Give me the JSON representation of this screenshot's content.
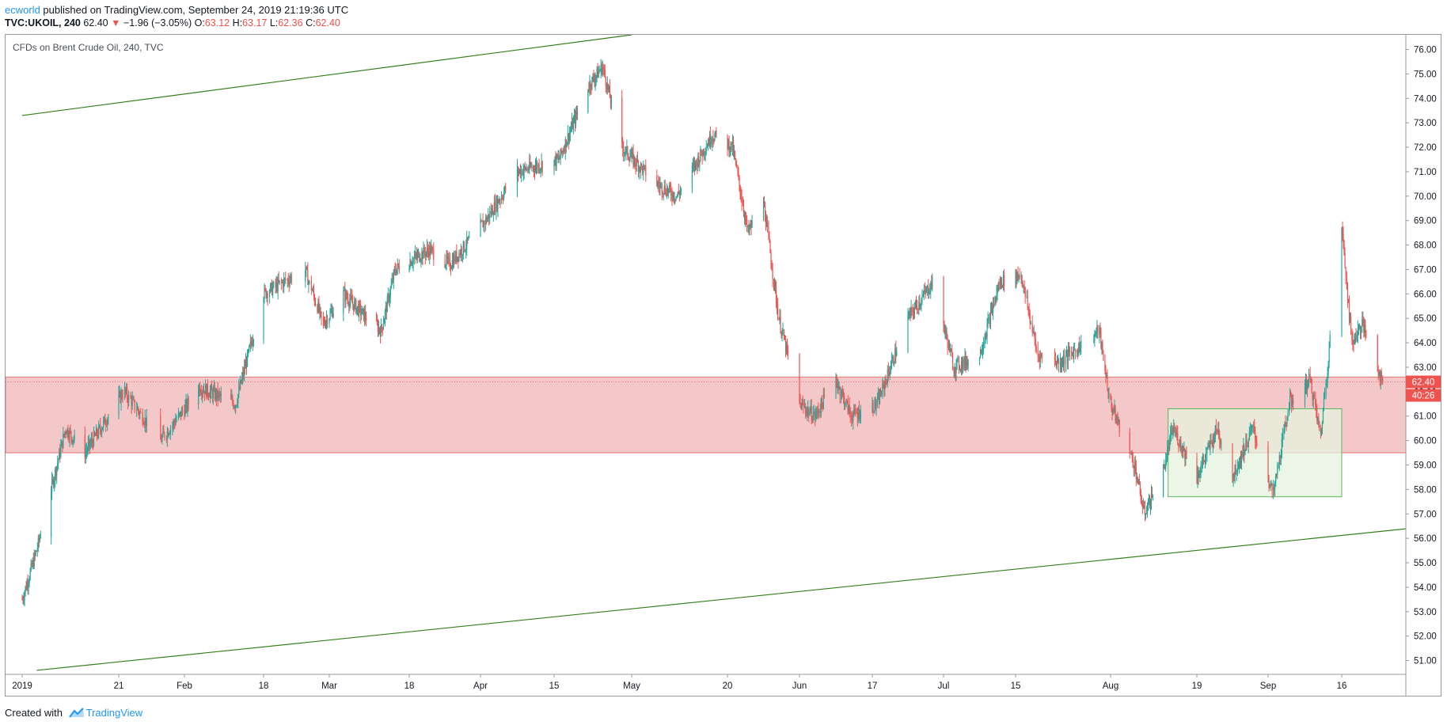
{
  "header": {
    "author": "ecworld",
    "published_text": "published on TradingView.com, September 24, 2019 21:19:36 UTC",
    "symbol": "TVC:UKOIL, 240",
    "last": "62.40",
    "arrow": "▼",
    "change": "−1.96 (−3.05%)",
    "o_label": "O:",
    "o_value": "63.12",
    "h_label": "H:",
    "h_value": "63.17",
    "l_label": "L:",
    "l_value": "62.36",
    "c_label": "C:",
    "c_value": "62.40"
  },
  "footer": {
    "created_with": "Created with",
    "brand": "TradingView"
  },
  "colors": {
    "up": "#26a69a",
    "down": "#ef5350",
    "zone_fill": "#f4c7c9",
    "zone_border": "#e57373",
    "trend_line": "#33801a",
    "box_fill": "#e6f3dd",
    "box_border": "#5cb85c",
    "price_badge": "#ef5350"
  },
  "chart_data": {
    "type": "candlestick",
    "title": "CFDs on Brent Crude Oil, 240, TVC",
    "ylim": [
      50.5,
      76.6
    ],
    "y_ticks": [
      51,
      52,
      53,
      54,
      55,
      56,
      57,
      58,
      59,
      60,
      61,
      62,
      63,
      64,
      65,
      66,
      67,
      68,
      69,
      70,
      71,
      72,
      73,
      74,
      75,
      76
    ],
    "x_ticks": [
      {
        "label": "2019",
        "date": "2019-01-01"
      },
      {
        "label": "21",
        "date": "2019-01-21"
      },
      {
        "label": "Feb",
        "date": "2019-02-01"
      },
      {
        "label": "18",
        "date": "2019-02-18"
      },
      {
        "label": "Mar",
        "date": "2019-03-01"
      },
      {
        "label": "18",
        "date": "2019-03-18"
      },
      {
        "label": "Apr",
        "date": "2019-04-01"
      },
      {
        "label": "15",
        "date": "2019-04-15"
      },
      {
        "label": "May",
        "date": "2019-05-01"
      },
      {
        "label": "20",
        "date": "2019-05-20"
      },
      {
        "label": "Jun",
        "date": "2019-06-03"
      },
      {
        "label": "17",
        "date": "2019-06-17"
      },
      {
        "label": "Jul",
        "date": "2019-07-01"
      },
      {
        "label": "15",
        "date": "2019-07-15"
      },
      {
        "label": "Aug",
        "date": "2019-08-01"
      },
      {
        "label": "19",
        "date": "2019-08-19"
      },
      {
        "label": "Sep",
        "date": "2019-09-02"
      },
      {
        "label": "16",
        "date": "2019-09-16"
      }
    ],
    "price_path": [
      {
        "date": "2019-01-01",
        "price": 53.5
      },
      {
        "date": "2019-01-04",
        "price": 55.5
      },
      {
        "date": "2019-01-10",
        "price": 60.5
      },
      {
        "date": "2019-01-14",
        "price": 59.5
      },
      {
        "date": "2019-01-22",
        "price": 62.0
      },
      {
        "date": "2019-01-28",
        "price": 60.0
      },
      {
        "date": "2019-02-04",
        "price": 62.2
      },
      {
        "date": "2019-02-12",
        "price": 61.5
      },
      {
        "date": "2019-02-18",
        "price": 66.0
      },
      {
        "date": "2019-02-25",
        "price": 67.0
      },
      {
        "date": "2019-02-28",
        "price": 64.8
      },
      {
        "date": "2019-03-04",
        "price": 66.0
      },
      {
        "date": "2019-03-08",
        "price": 65.2
      },
      {
        "date": "2019-03-12",
        "price": 64.5
      },
      {
        "date": "2019-03-15",
        "price": 67.0
      },
      {
        "date": "2019-03-22",
        "price": 67.8
      },
      {
        "date": "2019-03-26",
        "price": 67.2
      },
      {
        "date": "2019-04-02",
        "price": 69.0
      },
      {
        "date": "2019-04-08",
        "price": 71.0
      },
      {
        "date": "2019-04-16",
        "price": 71.5
      },
      {
        "date": "2019-04-22",
        "price": 74.5
      },
      {
        "date": "2019-04-25",
        "price": 75.3
      },
      {
        "date": "2019-04-29",
        "price": 72.0
      },
      {
        "date": "2019-05-06",
        "price": 70.5
      },
      {
        "date": "2019-05-10",
        "price": 70.0
      },
      {
        "date": "2019-05-17",
        "price": 72.5
      },
      {
        "date": "2019-05-21",
        "price": 72.0
      },
      {
        "date": "2019-05-24",
        "price": 68.5
      },
      {
        "date": "2019-05-27",
        "price": 69.8
      },
      {
        "date": "2019-05-30",
        "price": 65.0
      },
      {
        "date": "2019-06-03",
        "price": 61.5
      },
      {
        "date": "2019-06-06",
        "price": 61.0
      },
      {
        "date": "2019-06-10",
        "price": 62.5
      },
      {
        "date": "2019-06-13",
        "price": 61.0
      },
      {
        "date": "2019-06-18",
        "price": 61.5
      },
      {
        "date": "2019-06-24",
        "price": 65.0
      },
      {
        "date": "2019-06-29",
        "price": 66.5
      },
      {
        "date": "2019-07-03",
        "price": 63.0
      },
      {
        "date": "2019-07-08",
        "price": 63.5
      },
      {
        "date": "2019-07-12",
        "price": 66.5
      },
      {
        "date": "2019-07-16",
        "price": 66.8
      },
      {
        "date": "2019-07-19",
        "price": 63.5
      },
      {
        "date": "2019-07-23",
        "price": 63.2
      },
      {
        "date": "2019-07-30",
        "price": 64.5
      },
      {
        "date": "2019-08-01",
        "price": 61.5
      },
      {
        "date": "2019-08-06",
        "price": 59.0
      },
      {
        "date": "2019-08-08",
        "price": 57.0
      },
      {
        "date": "2019-08-12",
        "price": 58.8
      },
      {
        "date": "2019-08-14",
        "price": 60.5
      },
      {
        "date": "2019-08-19",
        "price": 58.5
      },
      {
        "date": "2019-08-23",
        "price": 60.5
      },
      {
        "date": "2019-08-26",
        "price": 58.5
      },
      {
        "date": "2019-08-30",
        "price": 60.5
      },
      {
        "date": "2019-09-03",
        "price": 57.8
      },
      {
        "date": "2019-09-06",
        "price": 61.5
      },
      {
        "date": "2019-09-10",
        "price": 62.5
      },
      {
        "date": "2019-09-12",
        "price": 60.2
      },
      {
        "date": "2019-09-16",
        "price": 68.8
      },
      {
        "date": "2019-09-18",
        "price": 64.0
      },
      {
        "date": "2019-09-20",
        "price": 64.8
      },
      {
        "date": "2019-09-24",
        "price": 62.4
      }
    ],
    "annotations": {
      "resistance_zone": {
        "y_low": 59.5,
        "y_high": 62.6
      },
      "consolidation_box": {
        "x_start": "2019-08-13",
        "x_end": "2019-09-16",
        "y_low": 57.7,
        "y_high": 61.3
      },
      "upper_trend_line": {
        "points": [
          {
            "date": "2019-01-01",
            "price": 73.3
          },
          {
            "date": "2019-05-01",
            "price": 76.6
          }
        ]
      },
      "lower_trend_line": {
        "points": [
          {
            "date": "2019-01-04",
            "price": 50.6
          },
          {
            "date": "2019-09-29",
            "price": 56.4
          }
        ]
      }
    },
    "last_price_label": "62.40",
    "countdown_label": "40:26"
  }
}
